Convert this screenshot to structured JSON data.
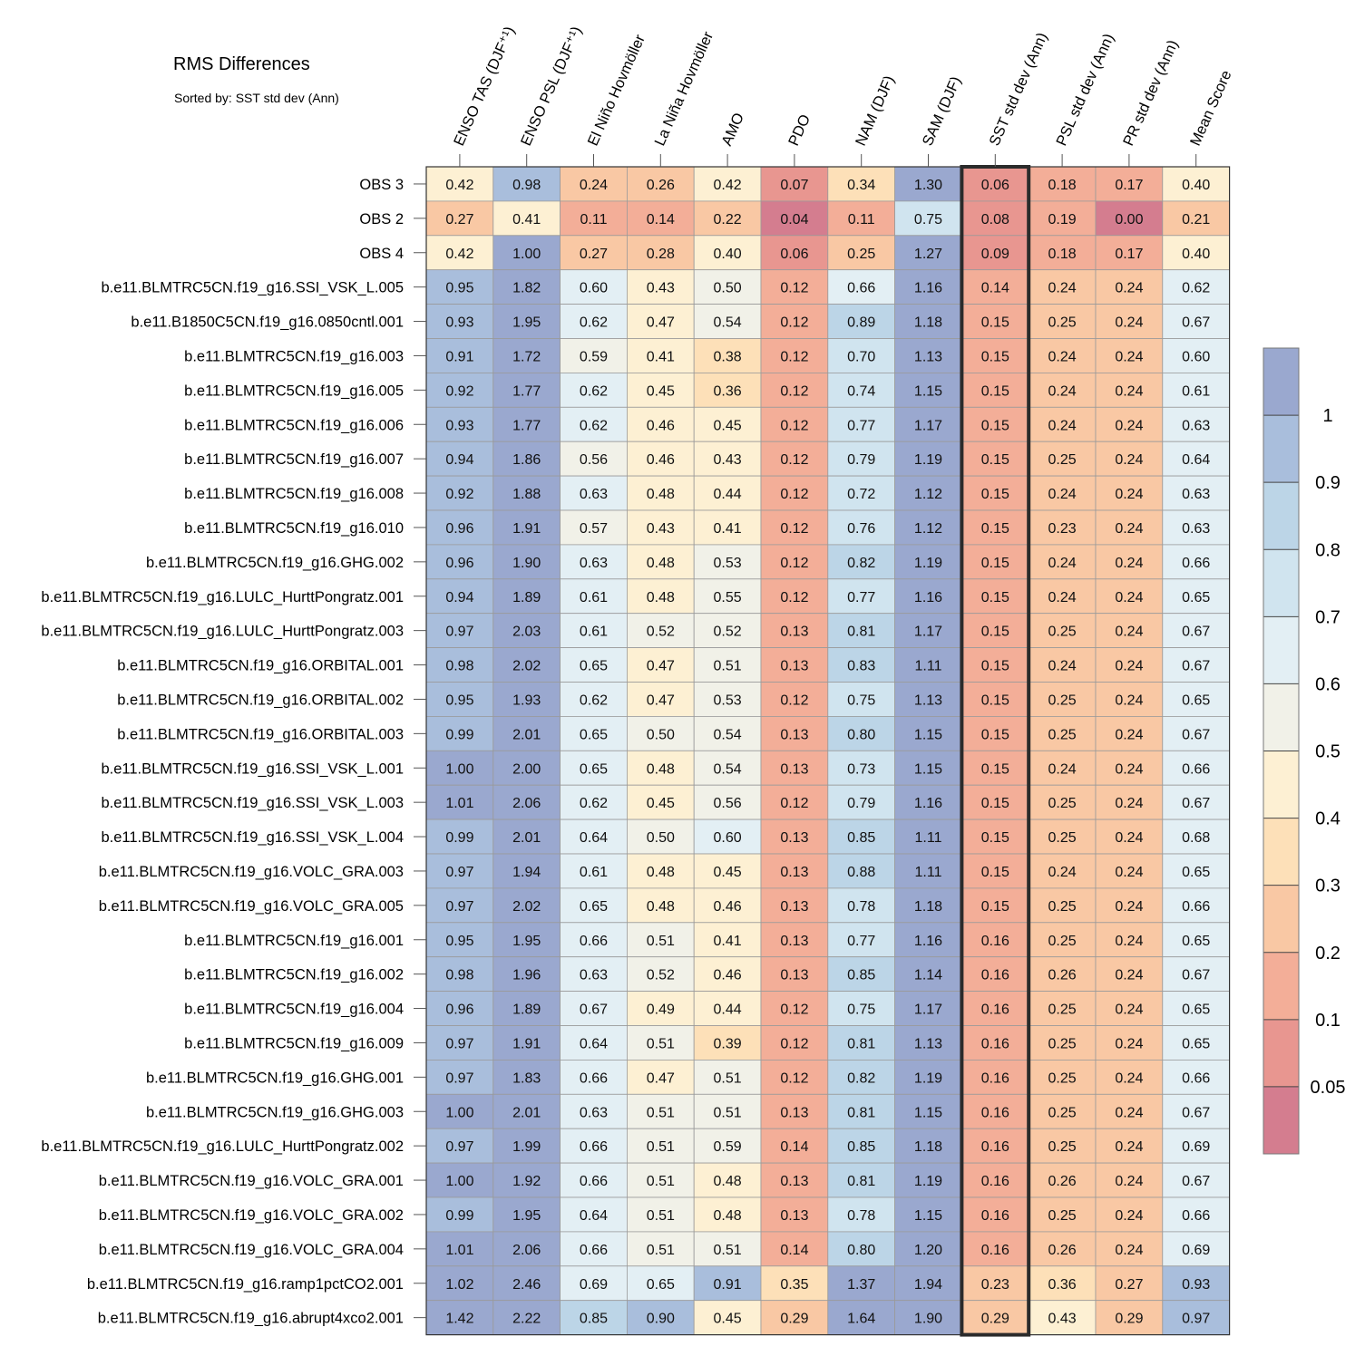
{
  "title": "RMS Differences",
  "subtitle": "Sorted by: SST std dev (Ann)",
  "chart_data": {
    "type": "heatmap",
    "title": "RMS Differences",
    "subtitle": "Sorted by: SST std dev (Ann)",
    "columns": [
      "ENSO TAS (DJF⁺¹)",
      "ENSO PSL (DJF⁺¹)",
      "El Niño Hovmöller",
      "La Niña Hovmöller",
      "AMO",
      "PDO",
      "NAM (DJF)",
      "SAM (DJF)",
      "SST std dev (Ann)",
      "PSL std dev (Ann)",
      "PR std dev (Ann)",
      "Mean Score"
    ],
    "highlighted_column": "SST std dev (Ann)",
    "rows": [
      "OBS 3",
      "OBS 2",
      "OBS 4",
      "b.e11.BLMTRC5CN.f19_g16.SSI_VSK_L.005",
      "b.e11.B1850C5CN.f19_g16.0850cntl.001",
      "b.e11.BLMTRC5CN.f19_g16.003",
      "b.e11.BLMTRC5CN.f19_g16.005",
      "b.e11.BLMTRC5CN.f19_g16.006",
      "b.e11.BLMTRC5CN.f19_g16.007",
      "b.e11.BLMTRC5CN.f19_g16.008",
      "b.e11.BLMTRC5CN.f19_g16.010",
      "b.e11.BLMTRC5CN.f19_g16.GHG.002",
      "b.e11.BLMTRC5CN.f19_g16.LULC_HurttPongratz.001",
      "b.e11.BLMTRC5CN.f19_g16.LULC_HurttPongratz.003",
      "b.e11.BLMTRC5CN.f19_g16.ORBITAL.001",
      "b.e11.BLMTRC5CN.f19_g16.ORBITAL.002",
      "b.e11.BLMTRC5CN.f19_g16.ORBITAL.003",
      "b.e11.BLMTRC5CN.f19_g16.SSI_VSK_L.001",
      "b.e11.BLMTRC5CN.f19_g16.SSI_VSK_L.003",
      "b.e11.BLMTRC5CN.f19_g16.SSI_VSK_L.004",
      "b.e11.BLMTRC5CN.f19_g16.VOLC_GRA.003",
      "b.e11.BLMTRC5CN.f19_g16.VOLC_GRA.005",
      "b.e11.BLMTRC5CN.f19_g16.001",
      "b.e11.BLMTRC5CN.f19_g16.002",
      "b.e11.BLMTRC5CN.f19_g16.004",
      "b.e11.BLMTRC5CN.f19_g16.009",
      "b.e11.BLMTRC5CN.f19_g16.GHG.001",
      "b.e11.BLMTRC5CN.f19_g16.GHG.003",
      "b.e11.BLMTRC5CN.f19_g16.LULC_HurttPongratz.002",
      "b.e11.BLMTRC5CN.f19_g16.VOLC_GRA.001",
      "b.e11.BLMTRC5CN.f19_g16.VOLC_GRA.002",
      "b.e11.BLMTRC5CN.f19_g16.VOLC_GRA.004",
      "b.e11.BLMTRC5CN.f19_g16.ramp1pctCO2.001",
      "b.e11.BLMTRC5CN.f19_g16.abrupt4xco2.001"
    ],
    "values": [
      [
        "0.42",
        "0.98",
        "0.24",
        "0.26",
        "0.42",
        "0.07",
        "0.34",
        "1.30",
        "0.06",
        "0.18",
        "0.17",
        "0.40"
      ],
      [
        "0.27",
        "0.41",
        "0.11",
        "0.14",
        "0.22",
        "0.04",
        "0.11",
        "0.75",
        "0.08",
        "0.19",
        "0.00",
        "0.21"
      ],
      [
        "0.42",
        "1.00",
        "0.27",
        "0.28",
        "0.40",
        "0.06",
        "0.25",
        "1.27",
        "0.09",
        "0.18",
        "0.17",
        "0.40"
      ],
      [
        "0.95",
        "1.82",
        "0.60",
        "0.43",
        "0.50",
        "0.12",
        "0.66",
        "1.16",
        "0.14",
        "0.24",
        "0.24",
        "0.62"
      ],
      [
        "0.93",
        "1.95",
        "0.62",
        "0.47",
        "0.54",
        "0.12",
        "0.89",
        "1.18",
        "0.15",
        "0.25",
        "0.24",
        "0.67"
      ],
      [
        "0.91",
        "1.72",
        "0.59",
        "0.41",
        "0.38",
        "0.12",
        "0.70",
        "1.13",
        "0.15",
        "0.24",
        "0.24",
        "0.60"
      ],
      [
        "0.92",
        "1.77",
        "0.62",
        "0.45",
        "0.36",
        "0.12",
        "0.74",
        "1.15",
        "0.15",
        "0.24",
        "0.24",
        "0.61"
      ],
      [
        "0.93",
        "1.77",
        "0.62",
        "0.46",
        "0.45",
        "0.12",
        "0.77",
        "1.17",
        "0.15",
        "0.24",
        "0.24",
        "0.63"
      ],
      [
        "0.94",
        "1.86",
        "0.56",
        "0.46",
        "0.43",
        "0.12",
        "0.79",
        "1.19",
        "0.15",
        "0.25",
        "0.24",
        "0.64"
      ],
      [
        "0.92",
        "1.88",
        "0.63",
        "0.48",
        "0.44",
        "0.12",
        "0.72",
        "1.12",
        "0.15",
        "0.24",
        "0.24",
        "0.63"
      ],
      [
        "0.96",
        "1.91",
        "0.57",
        "0.43",
        "0.41",
        "0.12",
        "0.76",
        "1.12",
        "0.15",
        "0.23",
        "0.24",
        "0.63"
      ],
      [
        "0.96",
        "1.90",
        "0.63",
        "0.48",
        "0.53",
        "0.12",
        "0.82",
        "1.19",
        "0.15",
        "0.24",
        "0.24",
        "0.66"
      ],
      [
        "0.94",
        "1.89",
        "0.61",
        "0.48",
        "0.55",
        "0.12",
        "0.77",
        "1.16",
        "0.15",
        "0.24",
        "0.24",
        "0.65"
      ],
      [
        "0.97",
        "2.03",
        "0.61",
        "0.52",
        "0.52",
        "0.13",
        "0.81",
        "1.17",
        "0.15",
        "0.25",
        "0.24",
        "0.67"
      ],
      [
        "0.98",
        "2.02",
        "0.65",
        "0.47",
        "0.51",
        "0.13",
        "0.83",
        "1.11",
        "0.15",
        "0.24",
        "0.24",
        "0.67"
      ],
      [
        "0.95",
        "1.93",
        "0.62",
        "0.47",
        "0.53",
        "0.12",
        "0.75",
        "1.13",
        "0.15",
        "0.25",
        "0.24",
        "0.65"
      ],
      [
        "0.99",
        "2.01",
        "0.65",
        "0.50",
        "0.54",
        "0.13",
        "0.80",
        "1.15",
        "0.15",
        "0.25",
        "0.24",
        "0.67"
      ],
      [
        "1.00",
        "2.00",
        "0.65",
        "0.48",
        "0.54",
        "0.13",
        "0.73",
        "1.15",
        "0.15",
        "0.24",
        "0.24",
        "0.66"
      ],
      [
        "1.01",
        "2.06",
        "0.62",
        "0.45",
        "0.56",
        "0.12",
        "0.79",
        "1.16",
        "0.15",
        "0.25",
        "0.24",
        "0.67"
      ],
      [
        "0.99",
        "2.01",
        "0.64",
        "0.50",
        "0.60",
        "0.13",
        "0.85",
        "1.11",
        "0.15",
        "0.25",
        "0.24",
        "0.68"
      ],
      [
        "0.97",
        "1.94",
        "0.61",
        "0.48",
        "0.45",
        "0.13",
        "0.88",
        "1.11",
        "0.15",
        "0.24",
        "0.24",
        "0.65"
      ],
      [
        "0.97",
        "2.02",
        "0.65",
        "0.48",
        "0.46",
        "0.13",
        "0.78",
        "1.18",
        "0.15",
        "0.25",
        "0.24",
        "0.66"
      ],
      [
        "0.95",
        "1.95",
        "0.66",
        "0.51",
        "0.41",
        "0.13",
        "0.77",
        "1.16",
        "0.16",
        "0.25",
        "0.24",
        "0.65"
      ],
      [
        "0.98",
        "1.96",
        "0.63",
        "0.52",
        "0.46",
        "0.13",
        "0.85",
        "1.14",
        "0.16",
        "0.26",
        "0.24",
        "0.67"
      ],
      [
        "0.96",
        "1.89",
        "0.67",
        "0.49",
        "0.44",
        "0.12",
        "0.75",
        "1.17",
        "0.16",
        "0.25",
        "0.24",
        "0.65"
      ],
      [
        "0.97",
        "1.91",
        "0.64",
        "0.51",
        "0.39",
        "0.12",
        "0.81",
        "1.13",
        "0.16",
        "0.25",
        "0.24",
        "0.65"
      ],
      [
        "0.97",
        "1.83",
        "0.66",
        "0.47",
        "0.51",
        "0.12",
        "0.82",
        "1.19",
        "0.16",
        "0.25",
        "0.24",
        "0.66"
      ],
      [
        "1.00",
        "2.01",
        "0.63",
        "0.51",
        "0.51",
        "0.13",
        "0.81",
        "1.15",
        "0.16",
        "0.25",
        "0.24",
        "0.67"
      ],
      [
        "0.97",
        "1.99",
        "0.66",
        "0.51",
        "0.59",
        "0.14",
        "0.85",
        "1.18",
        "0.16",
        "0.25",
        "0.24",
        "0.69"
      ],
      [
        "1.00",
        "1.92",
        "0.66",
        "0.51",
        "0.48",
        "0.13",
        "0.81",
        "1.19",
        "0.16",
        "0.26",
        "0.24",
        "0.67"
      ],
      [
        "0.99",
        "1.95",
        "0.64",
        "0.51",
        "0.48",
        "0.13",
        "0.78",
        "1.15",
        "0.16",
        "0.25",
        "0.24",
        "0.66"
      ],
      [
        "1.01",
        "2.06",
        "0.66",
        "0.51",
        "0.51",
        "0.14",
        "0.80",
        "1.20",
        "0.16",
        "0.26",
        "0.24",
        "0.69"
      ],
      [
        "1.02",
        "2.46",
        "0.69",
        "0.65",
        "0.91",
        "0.35",
        "1.37",
        "1.94",
        "0.23",
        "0.36",
        "0.27",
        "0.93"
      ],
      [
        "1.42",
        "2.22",
        "0.85",
        "0.90",
        "0.45",
        "0.29",
        "1.64",
        "1.90",
        "0.29",
        "0.43",
        "0.29",
        "0.97"
      ]
    ],
    "colorbar": {
      "labels": [
        "1",
        "0.9",
        "0.8",
        "0.7",
        "0.6",
        "0.5",
        "0.4",
        "0.3",
        "0.2",
        "0.1",
        "0.05"
      ],
      "colors": [
        "#9aa8cf",
        "#a9bedc",
        "#bcd5e7",
        "#d0e4ef",
        "#e3eff4",
        "#f1f1e8",
        "#fdf0d3",
        "#fde0b8",
        "#f9c8a4",
        "#f3ae98",
        "#e89690",
        "#d47d8f"
      ]
    }
  }
}
